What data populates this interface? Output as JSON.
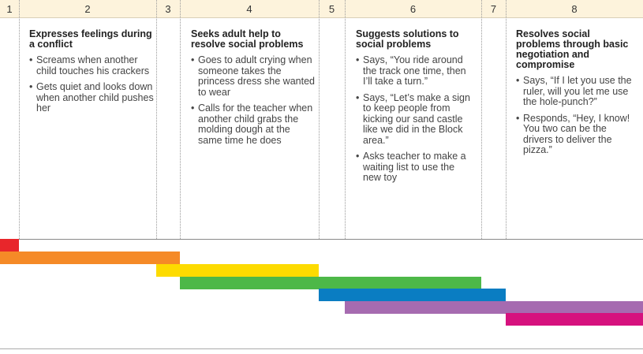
{
  "columns": [
    "1",
    "2",
    "3",
    "4",
    "5",
    "6",
    "7",
    "8"
  ],
  "descriptors": [
    {
      "title": "Expresses feelings during a conflict",
      "items": [
        "Screams when another child touches his crackers",
        "Gets quiet and looks down when another child pushes her"
      ]
    },
    {
      "title": "Seeks adult help to resolve social problems",
      "items": [
        "Goes to adult crying when someone takes the princess dress she wanted to wear",
        "Calls for the teacher when another child grabs the molding dough at the same time he does"
      ]
    },
    {
      "title": "Suggests solutions to social problems",
      "items": [
        "Says, “You ride around the track one time, then I’ll take a turn.”",
        "Says, “Let’s make a sign to keep people from kicking our sand castle like we did in the Block area.”",
        "Asks teacher to make a waiting list to use the new toy"
      ]
    },
    {
      "title": "Resolves social problems through basic negotiation and compromise",
      "items": [
        "Says, “If I let you use the ruler, will you let me use the hole-punch?”",
        "Responds, “Hey, I know! You two can be the drivers to deliver the pizza.”"
      ]
    }
  ]
}
